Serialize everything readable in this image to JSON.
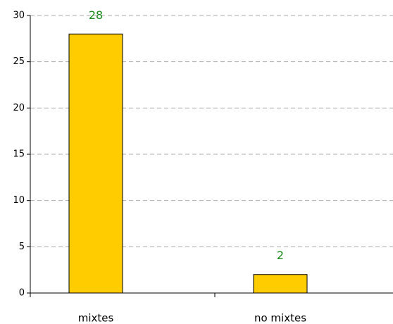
{
  "chart_data": {
    "type": "bar",
    "categories": [
      "mixtes",
      "no mixtes"
    ],
    "values": [
      28,
      2
    ],
    "color": "#ffcc00",
    "ylim": [
      0,
      30
    ],
    "yticks": [
      0,
      5,
      10,
      15,
      20,
      25,
      30
    ],
    "grid": true
  }
}
